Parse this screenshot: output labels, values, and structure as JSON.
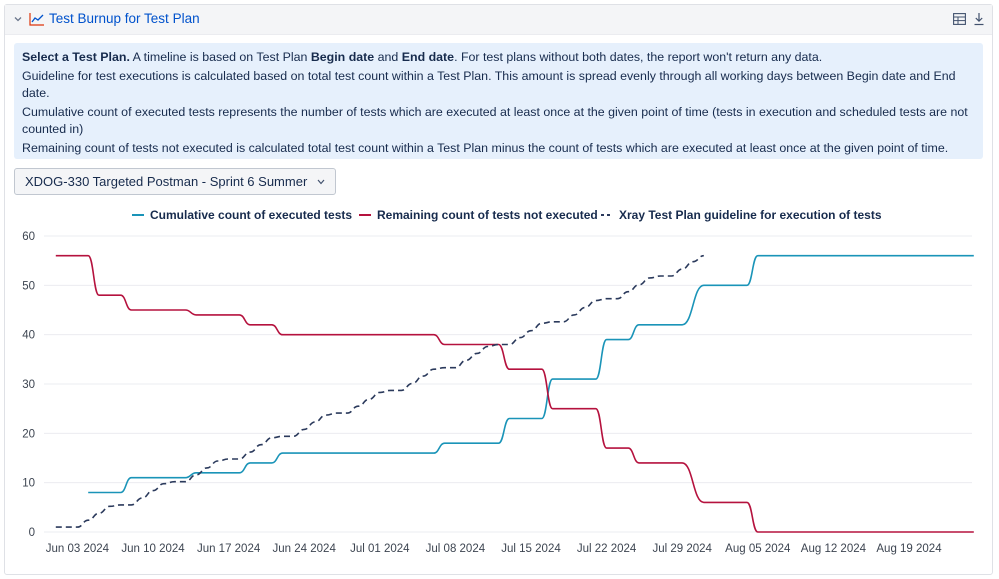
{
  "header": {
    "title": "Test Burnup for Test Plan"
  },
  "info": {
    "line1_bold_a": "Select a Test Plan.",
    "line1_text_a": " A timeline is based on Test Plan ",
    "line1_bold_b": "Begin date",
    "line1_text_b": " and ",
    "line1_bold_c": "End date",
    "line1_text_c": ". For test plans without both dates, the report won't return any data.",
    "line2": "Guideline for test executions is calculated based on total test count within a Test Plan. This amount is spread evenly through all working days between Begin date and End date.",
    "line3": "Cumulative count of executed tests represents the number of tests which are executed at least once at the given point of time (tests in execution and scheduled tests are not counted in)",
    "line4": "Remaining count of tests not executed is calculated total test count within a Test Plan minus the count of tests which are executed at least once at the given point of time."
  },
  "selector": {
    "value": "XDOG-330 Targeted Postman - Sprint 6 Summer"
  },
  "colors": {
    "executed": "#1a94b8",
    "remaining": "#b5123e",
    "guideline": "#2b3a5c",
    "grid": "#ebecf0",
    "accent": "#0052cc"
  },
  "chart_data": {
    "type": "line",
    "title": "",
    "xlabel": "",
    "ylabel": "",
    "ylim": [
      0,
      60
    ],
    "yticks": [
      0,
      10,
      20,
      30,
      40,
      50,
      60
    ],
    "xlim": [
      0,
      86
    ],
    "xtick_labels": [
      "Jun 03 2024",
      "Jun 10 2024",
      "Jun 17 2024",
      "Jun 24 2024",
      "Jul 01 2024",
      "Jul 08 2024",
      "Jul 15 2024",
      "Jul 22 2024",
      "Jul 29 2024",
      "Aug 05 2024",
      "Aug 12 2024",
      "Aug 19 2024"
    ],
    "xtick_days": [
      3,
      10,
      17,
      24,
      31,
      38,
      45,
      52,
      59,
      66,
      73,
      80
    ],
    "legend_position": "top",
    "series": [
      {
        "name": "Cumulative count of executed tests",
        "style": "solid",
        "points": [
          [
            4,
            8
          ],
          [
            7,
            8
          ],
          [
            8,
            11
          ],
          [
            13,
            11
          ],
          [
            14,
            12
          ],
          [
            18,
            12
          ],
          [
            19,
            14
          ],
          [
            21,
            14
          ],
          [
            22,
            16
          ],
          [
            36,
            16
          ],
          [
            37,
            18
          ],
          [
            42,
            18
          ],
          [
            43,
            23
          ],
          [
            46,
            23
          ],
          [
            47,
            31
          ],
          [
            51,
            31
          ],
          [
            52,
            39
          ],
          [
            54,
            39
          ],
          [
            55,
            42
          ],
          [
            59,
            42
          ],
          [
            61,
            50
          ],
          [
            65,
            50
          ],
          [
            66,
            56
          ],
          [
            86,
            56
          ]
        ]
      },
      {
        "name": "Remaining count of tests not executed",
        "style": "solid",
        "points": [
          [
            1,
            56
          ],
          [
            4,
            56
          ],
          [
            5,
            48
          ],
          [
            7,
            48
          ],
          [
            8,
            45
          ],
          [
            13,
            45
          ],
          [
            14,
            44
          ],
          [
            18,
            44
          ],
          [
            19,
            42
          ],
          [
            21,
            42
          ],
          [
            22,
            40
          ],
          [
            36,
            40
          ],
          [
            37,
            38
          ],
          [
            42,
            38
          ],
          [
            43,
            33
          ],
          [
            46,
            33
          ],
          [
            47,
            25
          ],
          [
            51,
            25
          ],
          [
            52,
            17
          ],
          [
            54,
            17
          ],
          [
            55,
            14
          ],
          [
            59,
            14
          ],
          [
            61,
            6
          ],
          [
            65,
            6
          ],
          [
            66,
            0
          ],
          [
            86,
            0
          ]
        ]
      },
      {
        "name": "Xray Test Plan guideline for execution of tests",
        "style": "dashed",
        "points": [
          [
            1,
            1
          ],
          [
            2,
            1
          ],
          [
            3,
            1
          ],
          [
            4,
            2.4
          ],
          [
            5,
            3.8
          ],
          [
            6,
            5.2
          ],
          [
            7,
            5.5
          ],
          [
            8,
            5.5
          ],
          [
            9,
            6.9
          ],
          [
            10,
            8.4
          ],
          [
            11,
            9.8
          ],
          [
            12,
            10.2
          ],
          [
            13,
            10.2
          ],
          [
            14,
            11.6
          ],
          [
            15,
            13
          ],
          [
            16,
            14.4
          ],
          [
            17,
            14.8
          ],
          [
            18,
            14.8
          ],
          [
            19,
            16.2
          ],
          [
            20,
            17.7
          ],
          [
            21,
            19.1
          ],
          [
            22,
            19.4
          ],
          [
            23,
            19.4
          ],
          [
            24,
            20.8
          ],
          [
            25,
            22.3
          ],
          [
            26,
            23.7
          ],
          [
            27,
            24.1
          ],
          [
            28,
            24.1
          ],
          [
            29,
            25.5
          ],
          [
            30,
            26.9
          ],
          [
            31,
            28.3
          ],
          [
            32,
            28.7
          ],
          [
            33,
            28.7
          ],
          [
            34,
            30.1
          ],
          [
            35,
            31.6
          ],
          [
            36,
            33
          ],
          [
            37,
            33.3
          ],
          [
            38,
            33.3
          ],
          [
            39,
            34.8
          ],
          [
            40,
            36.2
          ],
          [
            41,
            37.6
          ],
          [
            42,
            38
          ],
          [
            43,
            38
          ],
          [
            44,
            39.4
          ],
          [
            45,
            40.8
          ],
          [
            46,
            42.3
          ],
          [
            47,
            42.6
          ],
          [
            48,
            42.6
          ],
          [
            49,
            44
          ],
          [
            50,
            45.5
          ],
          [
            51,
            46.9
          ],
          [
            52,
            47.3
          ],
          [
            53,
            47.3
          ],
          [
            54,
            48.7
          ],
          [
            55,
            50.1
          ],
          [
            56,
            51.5
          ],
          [
            57,
            51.9
          ],
          [
            58,
            51.9
          ],
          [
            59,
            53.3
          ],
          [
            60,
            54.8
          ],
          [
            61,
            56
          ]
        ]
      }
    ]
  }
}
